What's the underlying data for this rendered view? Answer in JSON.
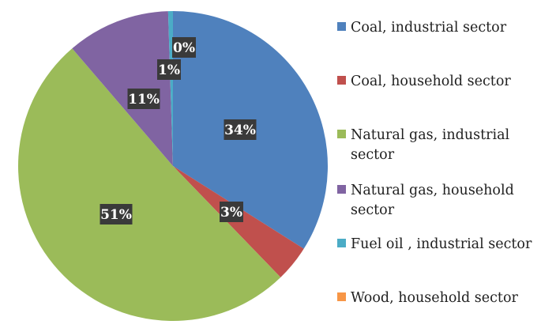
{
  "chart_data": {
    "type": "pie",
    "categories": [
      "Coal, industrial sector",
      "Coal, household sector",
      "Natural gas, industrial sector",
      "Natural gas, household sector",
      "Fuel oil , industrial sector",
      "Wood, household sector"
    ],
    "values": [
      34,
      3,
      51,
      11,
      1,
      0
    ],
    "data_labels": [
      "34%",
      "3%",
      "51%",
      "11%",
      "1%",
      "0%"
    ],
    "colors": [
      "#4f81bd",
      "#c0504d",
      "#9bbb59",
      "#8064a2",
      "#4bacc6",
      "#f79646"
    ],
    "legend_position": "right",
    "start_angle_deg": 0,
    "direction": "clockwise"
  }
}
